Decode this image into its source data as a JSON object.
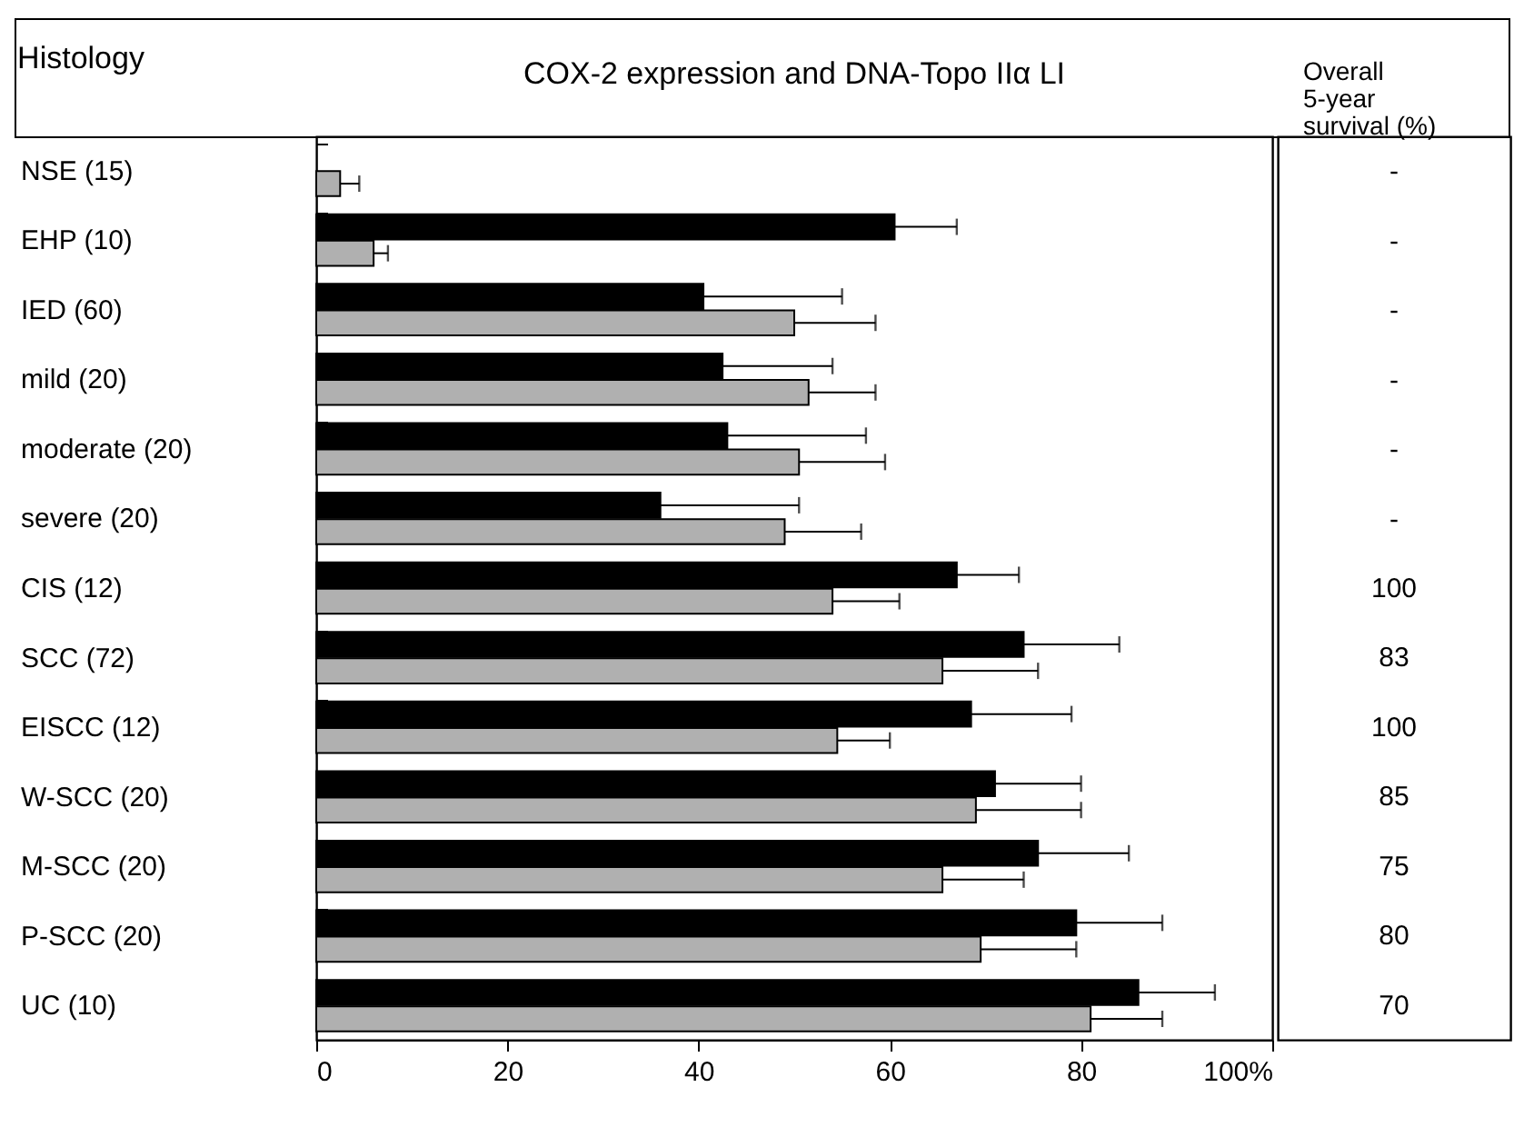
{
  "chart_data": {
    "type": "bar",
    "orientation": "horizontal",
    "title": "COX-2 expression and DNA-Topo IIα LI",
    "ylabel": "Histology",
    "categories": [
      "NSE (15)",
      "EHP (10)",
      "IED (60)",
      "mild (20)",
      "moderate (20)",
      "severe (20)",
      "CIS (12)",
      "SCC (72)",
      "EISCC (12)",
      "W-SCC (20)",
      "M-SCC (20)",
      "P-SCC (20)",
      "UC (10)"
    ],
    "series": [
      {
        "color": "#000000",
        "values": [
          null,
          60.5,
          40.5,
          42.5,
          43,
          36,
          67,
          74,
          68.5,
          71,
          75.5,
          79.5,
          86
        ],
        "errors": [
          null,
          [
            60.5,
            67
          ],
          [
            40.5,
            55
          ],
          [
            42.5,
            54
          ],
          [
            43,
            57.5
          ],
          [
            36,
            50.5
          ],
          [
            67,
            73.5
          ],
          [
            74,
            84
          ],
          [
            68.5,
            79
          ],
          [
            71,
            80
          ],
          [
            75.5,
            85
          ],
          [
            79.5,
            88.5
          ],
          [
            86,
            94
          ]
        ]
      },
      {
        "color": "#b0b0b0",
        "values": [
          2.5,
          6,
          50,
          51.5,
          50.5,
          49,
          54,
          65.5,
          54.5,
          69,
          65.5,
          69.5,
          81
        ],
        "errors": [
          [
            2.5,
            4.5
          ],
          [
            6,
            7.5
          ],
          [
            50,
            58.5
          ],
          [
            51.5,
            58.5
          ],
          [
            50.5,
            59.5
          ],
          [
            49,
            57
          ],
          [
            54,
            61
          ],
          [
            65.5,
            75.5
          ],
          [
            54.5,
            60
          ],
          [
            69,
            80
          ],
          [
            65.5,
            74
          ],
          [
            69.5,
            79.5
          ],
          [
            81,
            88.5
          ]
        ]
      }
    ],
    "xlim": [
      0,
      100
    ],
    "xticks": [
      0,
      20,
      40,
      60,
      80,
      {
        "value": 100,
        "label": "100%"
      }
    ],
    "legend": false,
    "annotations": [
      "Overall 5-year survival (%)",
      "-",
      "-",
      "-",
      "-",
      "-",
      "-",
      "100",
      "83",
      "100",
      "85",
      "75",
      "80",
      "70"
    ]
  }
}
